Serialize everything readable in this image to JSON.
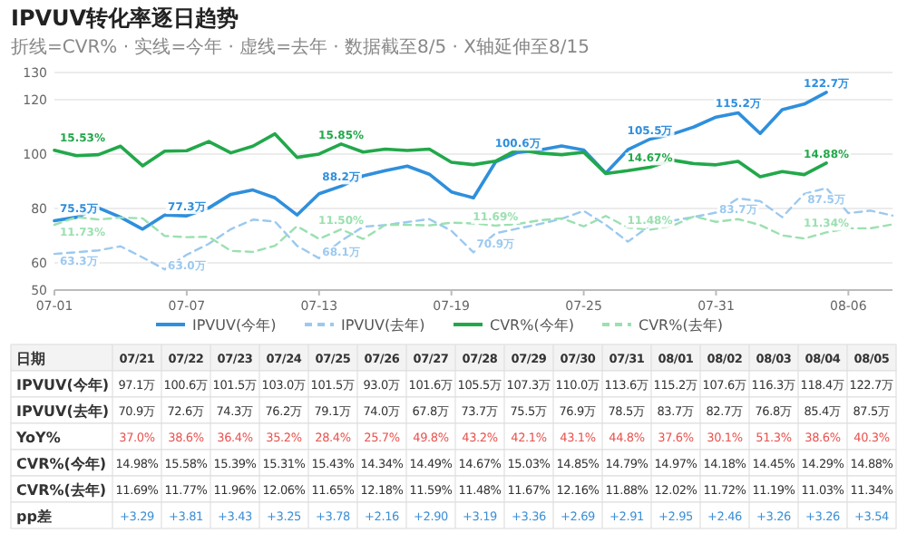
{
  "chart_data": [
    {
      "type": "line",
      "title": "IPVUV转化率逐日趋势",
      "subtitle": "折线=CVR% · 实线=今年 · 虚线=去年 · 数据截至8/5 · X轴延伸至8/15",
      "x": [
        "--07-01",
        "--07-02",
        "--07-03",
        "--07-04",
        "--07-05",
        "--07-06",
        "--07-07",
        "--07-08",
        "--07-09",
        "--07-10",
        "--07-11",
        "--07-12",
        "--07-13",
        "--07-14",
        "--07-15",
        "--07-16",
        "--07-17",
        "--07-18",
        "--07-19",
        "--07-20",
        "--07-21",
        "--07-22",
        "--07-23",
        "--07-24",
        "--07-25",
        "--07-26",
        "--07-27",
        "--07-28",
        "--07-29",
        "--07-30",
        "--07-31",
        "--08-01",
        "--08-02",
        "--08-03",
        "--08-04",
        "--08-05"
      ],
      "xlim": [
        "--07-01",
        "--08-08"
      ],
      "xticks": [
        {
          "value": "--07-01",
          "label": "07-01"
        },
        {
          "value": "--07-07",
          "label": "07-07"
        },
        {
          "value": "--07-13",
          "label": "07-13"
        },
        {
          "value": "--07-19",
          "label": "07-19"
        },
        {
          "value": "--07-25",
          "label": "07-25"
        },
        {
          "value": "--07-31",
          "label": "07-31"
        },
        {
          "value": "--08-06",
          "label": "08-06"
        }
      ],
      "ylim": [
        50,
        130
      ],
      "yticks": [
        50,
        60,
        80,
        100,
        120,
        130
      ],
      "y2lim": [
        8.4,
        19.5
      ],
      "grid": "y",
      "legend": "bottom",
      "line_style": "solid",
      "series": [
        {
          "name": "IPVUV(今年)",
          "color": "#2f8fdc",
          "values": [
            75.5,
            76.8,
            80.2,
            76.8,
            72.4,
            77.6,
            77.3,
            80.2,
            85.2,
            86.8,
            83.9,
            77.6,
            85.4,
            88.2,
            92.0,
            93.9,
            95.6,
            92.6,
            86.1,
            83.9,
            97.1,
            100.6,
            101.5,
            103.0,
            101.5,
            93.0,
            101.6,
            105.5,
            107.3,
            110.0,
            113.6,
            115.2,
            107.6,
            116.3,
            118.4,
            122.7
          ],
          "value_labels": [
            "75.5万",
            null,
            null,
            null,
            null,
            null,
            "77.3万",
            null,
            null,
            null,
            null,
            null,
            null,
            "88.2万",
            null,
            null,
            null,
            null,
            null,
            null,
            null,
            "100.6万",
            null,
            null,
            null,
            null,
            null,
            "105.5万",
            null,
            null,
            null,
            "115.2万",
            null,
            null,
            null,
            "122.7万"
          ]
        },
        {
          "name": "IPVUV(去年)",
          "color": "#9cc9ef",
          "line_style": "dashed",
          "x": [
            "--07-01",
            "--07-02",
            "--07-03",
            "--07-04",
            "--07-05",
            "--07-06",
            "--07-07",
            "--07-08",
            "--07-09",
            "--07-10",
            "--07-11",
            "--07-12",
            "--07-13",
            "--07-14",
            "--07-15",
            "--07-16",
            "--07-17",
            "--07-18",
            "--07-19",
            "--07-20",
            "--07-21",
            "--07-22",
            "--07-23",
            "--07-24",
            "--07-25",
            "--07-26",
            "--07-27",
            "--07-28",
            "--07-29",
            "--07-30",
            "--07-31",
            "--08-01",
            "--08-02",
            "--08-03",
            "--08-04",
            "--08-05",
            "--08-06",
            "--08-07",
            "--08-08"
          ],
          "values": [
            63.3,
            63.9,
            64.6,
            66.1,
            62.0,
            57.6,
            63.0,
            67.0,
            72.4,
            75.9,
            75.2,
            66.3,
            61.7,
            68.1,
            73.3,
            73.9,
            75.0,
            76.1,
            71.8,
            63.9,
            70.9,
            72.6,
            74.3,
            76.2,
            79.1,
            74.0,
            67.8,
            73.7,
            75.5,
            76.9,
            78.5,
            83.7,
            82.7,
            76.8,
            85.4,
            87.5,
            78.3,
            79.2,
            77.4
          ],
          "value_labels": [
            "63.3万",
            null,
            null,
            null,
            null,
            null,
            "63.0万",
            null,
            null,
            null,
            null,
            null,
            null,
            "68.1万",
            null,
            null,
            null,
            null,
            null,
            null,
            "70.9万",
            null,
            null,
            null,
            null,
            null,
            null,
            null,
            null,
            null,
            null,
            "83.7万",
            null,
            null,
            null,
            "87.5万",
            null,
            null,
            null
          ]
        },
        {
          "name": "CVR%(今年)",
          "color": "#22a84a",
          "axis": "y2",
          "values": [
            15.53,
            15.26,
            15.31,
            15.74,
            14.74,
            15.49,
            15.51,
            15.98,
            15.4,
            15.74,
            16.37,
            15.17,
            15.34,
            15.85,
            15.44,
            15.59,
            15.52,
            15.59,
            14.92,
            14.8,
            14.98,
            15.58,
            15.39,
            15.31,
            15.43,
            14.34,
            14.49,
            14.67,
            15.03,
            14.85,
            14.79,
            14.97,
            14.18,
            14.45,
            14.29,
            14.88
          ],
          "value_labels": [
            "15.53%",
            null,
            null,
            null,
            null,
            null,
            null,
            null,
            null,
            null,
            null,
            null,
            null,
            "15.85%",
            null,
            null,
            null,
            null,
            null,
            null,
            null,
            null,
            null,
            null,
            null,
            null,
            null,
            "14.67%",
            null,
            null,
            null,
            null,
            null,
            null,
            null,
            "14.88%"
          ]
        },
        {
          "name": "CVR%(去年)",
          "color": "#9be0b0",
          "axis": "y2",
          "line_style": "dashed",
          "x": [
            "--07-01",
            "--07-02",
            "--07-03",
            "--07-04",
            "--07-05",
            "--07-06",
            "--07-07",
            "--07-08",
            "--07-09",
            "--07-10",
            "--07-11",
            "--07-12",
            "--07-13",
            "--07-14",
            "--07-15",
            "--07-16",
            "--07-17",
            "--07-18",
            "--07-19",
            "--07-20",
            "--07-21",
            "--07-22",
            "--07-23",
            "--07-24",
            "--07-25",
            "--07-26",
            "--07-27",
            "--07-28",
            "--07-29",
            "--07-30",
            "--07-31",
            "--08-01",
            "--08-02",
            "--08-03",
            "--08-04",
            "--08-05",
            "--08-06",
            "--08-07",
            "--08-08"
          ],
          "values": [
            11.73,
            12.12,
            12.0,
            12.1,
            12.06,
            11.16,
            11.1,
            11.12,
            10.4,
            10.35,
            10.66,
            11.66,
            11.01,
            11.5,
            11.01,
            11.73,
            11.73,
            11.7,
            11.84,
            11.8,
            11.69,
            11.77,
            11.96,
            12.06,
            11.65,
            12.18,
            11.59,
            11.48,
            11.67,
            12.16,
            11.88,
            12.02,
            11.72,
            11.19,
            11.03,
            11.34,
            11.55,
            11.55,
            11.75
          ],
          "value_labels": [
            "11.73%",
            null,
            null,
            null,
            null,
            null,
            null,
            null,
            null,
            null,
            null,
            null,
            null,
            "11.50%",
            null,
            null,
            null,
            null,
            null,
            null,
            "11.69%",
            null,
            null,
            null,
            null,
            null,
            null,
            "11.48%",
            null,
            null,
            null,
            null,
            null,
            null,
            null,
            "11.34%",
            null,
            null,
            null
          ]
        }
      ]
    },
    {
      "type": "other",
      "ylabel": "日期",
      "categories": [
        "07/21",
        "07/22",
        "07/23",
        "07/24",
        "07/25",
        "07/26",
        "07/27",
        "07/28",
        "07/29",
        "07/30",
        "07/31",
        "08/01",
        "08/02",
        "08/03",
        "08/04",
        "08/05"
      ],
      "y_categories": [
        "IPVUV(今年)",
        "IPVUV(去年)",
        "YoY%",
        "CVR%(今年)",
        "CVR%(去年)",
        "pp差"
      ],
      "colors": [
        null,
        null,
        "#e8534f",
        null,
        null,
        "#3d8fd6"
      ],
      "cell_labels": [
        [
          "97.1万",
          "100.6万",
          "101.5万",
          "103.0万",
          "101.5万",
          "93.0万",
          "101.6万",
          "105.5万",
          "107.3万",
          "110.0万",
          "113.6万",
          "115.2万",
          "107.6万",
          "116.3万",
          "118.4万",
          "122.7万"
        ],
        [
          "70.9万",
          "72.6万",
          "74.3万",
          "76.2万",
          "79.1万",
          "74.0万",
          "67.8万",
          "73.7万",
          "75.5万",
          "76.9万",
          "78.5万",
          "83.7万",
          "82.7万",
          "76.8万",
          "85.4万",
          "87.5万"
        ],
        [
          "37.0%",
          "38.6%",
          "36.4%",
          "35.2%",
          "28.4%",
          "25.7%",
          "49.8%",
          "43.2%",
          "42.1%",
          "43.1%",
          "44.8%",
          "37.6%",
          "30.1%",
          "51.3%",
          "38.6%",
          "40.3%"
        ],
        [
          "14.98%",
          "15.58%",
          "15.39%",
          "15.31%",
          "15.43%",
          "14.34%",
          "14.49%",
          "14.67%",
          "15.03%",
          "14.85%",
          "14.79%",
          "14.97%",
          "14.18%",
          "14.45%",
          "14.29%",
          "14.88%"
        ],
        [
          "11.69%",
          "11.77%",
          "11.96%",
          "12.06%",
          "11.65%",
          "12.18%",
          "11.59%",
          "11.48%",
          "11.67%",
          "12.16%",
          "11.88%",
          "12.02%",
          "11.72%",
          "11.19%",
          "11.03%",
          "11.34%"
        ],
        [
          "+3.29",
          "+3.81",
          "+3.43",
          "+3.25",
          "+3.78",
          "+2.16",
          "+2.90",
          "+3.19",
          "+3.36",
          "+2.69",
          "+2.91",
          "+2.95",
          "+2.46",
          "+3.26",
          "+3.26",
          "+3.54"
        ]
      ]
    }
  ]
}
